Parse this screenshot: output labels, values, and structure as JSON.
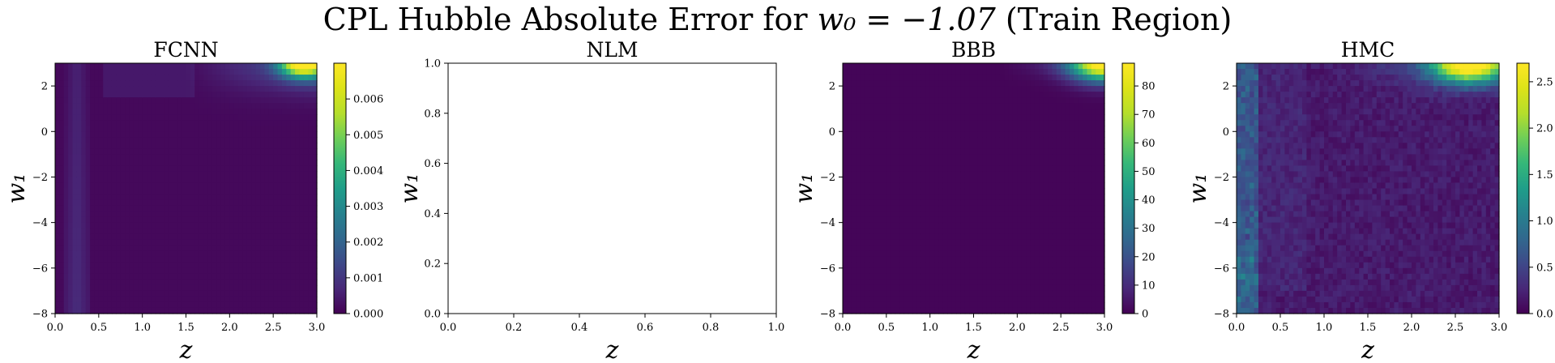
{
  "figure": {
    "title_prefix": "CPL Hubble Absolute Error for ",
    "title_math": "w₀ = −1.07",
    "title_suffix": " (Train Region)"
  },
  "chart_data": [
    {
      "type": "heatmap",
      "title": "FCNN",
      "xlabel": "z",
      "ylabel": "w₁",
      "xlim": [
        0.0,
        3.0
      ],
      "ylim": [
        -8,
        3
      ],
      "xticks": [
        "0.0",
        "0.5",
        "1.0",
        "1.5",
        "2.0",
        "2.5",
        "3.0"
      ],
      "yticks": [
        "−8",
        "−6",
        "−4",
        "−2",
        "0",
        "2"
      ],
      "colormap": "viridis",
      "colorbar": {
        "min": 0.0,
        "max": 0.007,
        "ticks": [
          "0.000",
          "0.001",
          "0.002",
          "0.003",
          "0.004",
          "0.005",
          "0.006"
        ]
      },
      "error_pattern": "near zero everywhere; slightly elevated in a vertical band at z ≈ 0.1–0.4; peak ≈ 0.007 at z ≈ 2.6–3.0, w₁ ≈ 2.5–3"
    },
    {
      "type": "heatmap",
      "title": "NLM",
      "xlabel": "z",
      "ylabel": "w₁",
      "xlim": [
        0.0,
        1.0
      ],
      "ylim": [
        0.0,
        1.0
      ],
      "xticks": [
        "0.0",
        "0.2",
        "0.4",
        "0.6",
        "0.8",
        "1.0"
      ],
      "yticks": [
        "0.0",
        "0.2",
        "0.4",
        "0.6",
        "0.8",
        "1.0"
      ],
      "empty": true
    },
    {
      "type": "heatmap",
      "title": "BBB",
      "xlabel": "z",
      "ylabel": "w₁",
      "xlim": [
        0.0,
        3.0
      ],
      "ylim": [
        -8,
        3
      ],
      "xticks": [
        "0.0",
        "0.5",
        "1.0",
        "1.5",
        "2.0",
        "2.5",
        "3.0"
      ],
      "yticks": [
        "−8",
        "−6",
        "−4",
        "−2",
        "0",
        "2"
      ],
      "colormap": "viridis",
      "colorbar": {
        "min": 0,
        "max": 88,
        "ticks": [
          "0",
          "10",
          "20",
          "30",
          "40",
          "50",
          "60",
          "70",
          "80"
        ]
      },
      "error_pattern": "near zero everywhere; peak ≈ 88 at z ≈ 2.9–3.0, w₁ ≈ 3"
    },
    {
      "type": "heatmap",
      "title": "HMC",
      "xlabel": "z",
      "ylabel": "w₁",
      "xlim": [
        0.0,
        3.0
      ],
      "ylim": [
        -8,
        3
      ],
      "xticks": [
        "0.0",
        "0.5",
        "1.0",
        "1.5",
        "2.0",
        "2.5",
        "3.0"
      ],
      "yticks": [
        "−8",
        "−6",
        "−4",
        "−2",
        "0",
        "2"
      ],
      "colormap": "viridis",
      "colorbar": {
        "min": 0.0,
        "max": 2.7,
        "ticks": [
          "0.0",
          "0.5",
          "1.0",
          "1.5",
          "2.0",
          "2.5"
        ]
      },
      "error_pattern": "noisy low background; elevated at z ≈ 0–0.25, especially w₁ < −5; peak ≈ 2.7 at z ≈ 2.4–2.9, w₁ ≈ 2.5–3"
    }
  ]
}
